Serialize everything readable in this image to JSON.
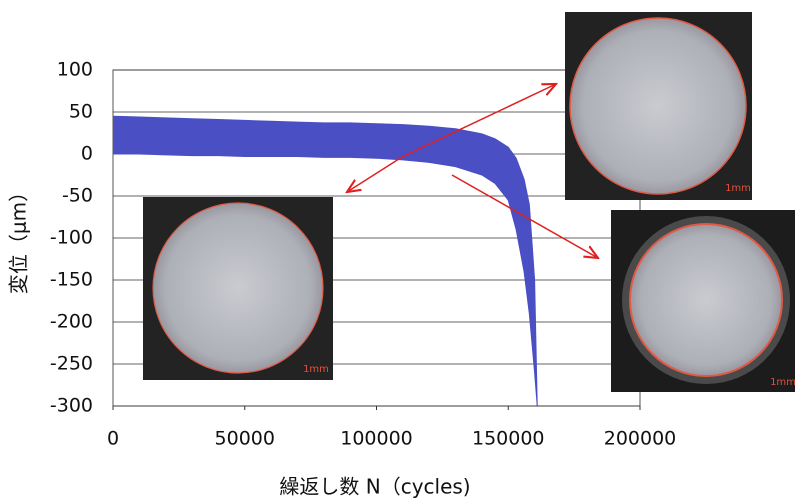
{
  "chart_data": {
    "type": "band",
    "x_label": "繰返し数 N（cycles)",
    "y_label": "変位（μm）",
    "x": [
      0,
      10000,
      20000,
      30000,
      40000,
      50000,
      60000,
      70000,
      80000,
      90000,
      100000,
      110000,
      120000,
      130000,
      140000,
      145000,
      150000,
      153000,
      156000,
      158000,
      160000,
      161000
    ],
    "series": [
      {
        "color": "#4a4fc4",
        "values": [
          45,
          44,
          43,
          42,
          41,
          40,
          39,
          38,
          37,
          37,
          36,
          35,
          33,
          30,
          24,
          18,
          8,
          -5,
          -30,
          -60,
          -150,
          -300
        ]
      },
      {
        "color": "#4a4fc4",
        "values": [
          0,
          0,
          -1,
          -2,
          -2,
          -3,
          -3,
          -3,
          -4,
          -4,
          -5,
          -7,
          -10,
          -15,
          -25,
          -35,
          -55,
          -90,
          -140,
          -190,
          -260,
          -300
        ]
      }
    ],
    "xlim": [
      0,
      200000
    ],
    "xticks": [
      0,
      50000,
      100000,
      150000,
      200000
    ],
    "ylim": [
      -300,
      100
    ],
    "yticks": [
      -300,
      -250,
      -200,
      -150,
      -100,
      -50,
      0,
      50,
      100
    ],
    "grid": true
  },
  "insets": [
    {
      "scale_label": "1mm"
    },
    {
      "scale_label": "1mm"
    },
    {
      "scale_label": "1mm"
    }
  ]
}
